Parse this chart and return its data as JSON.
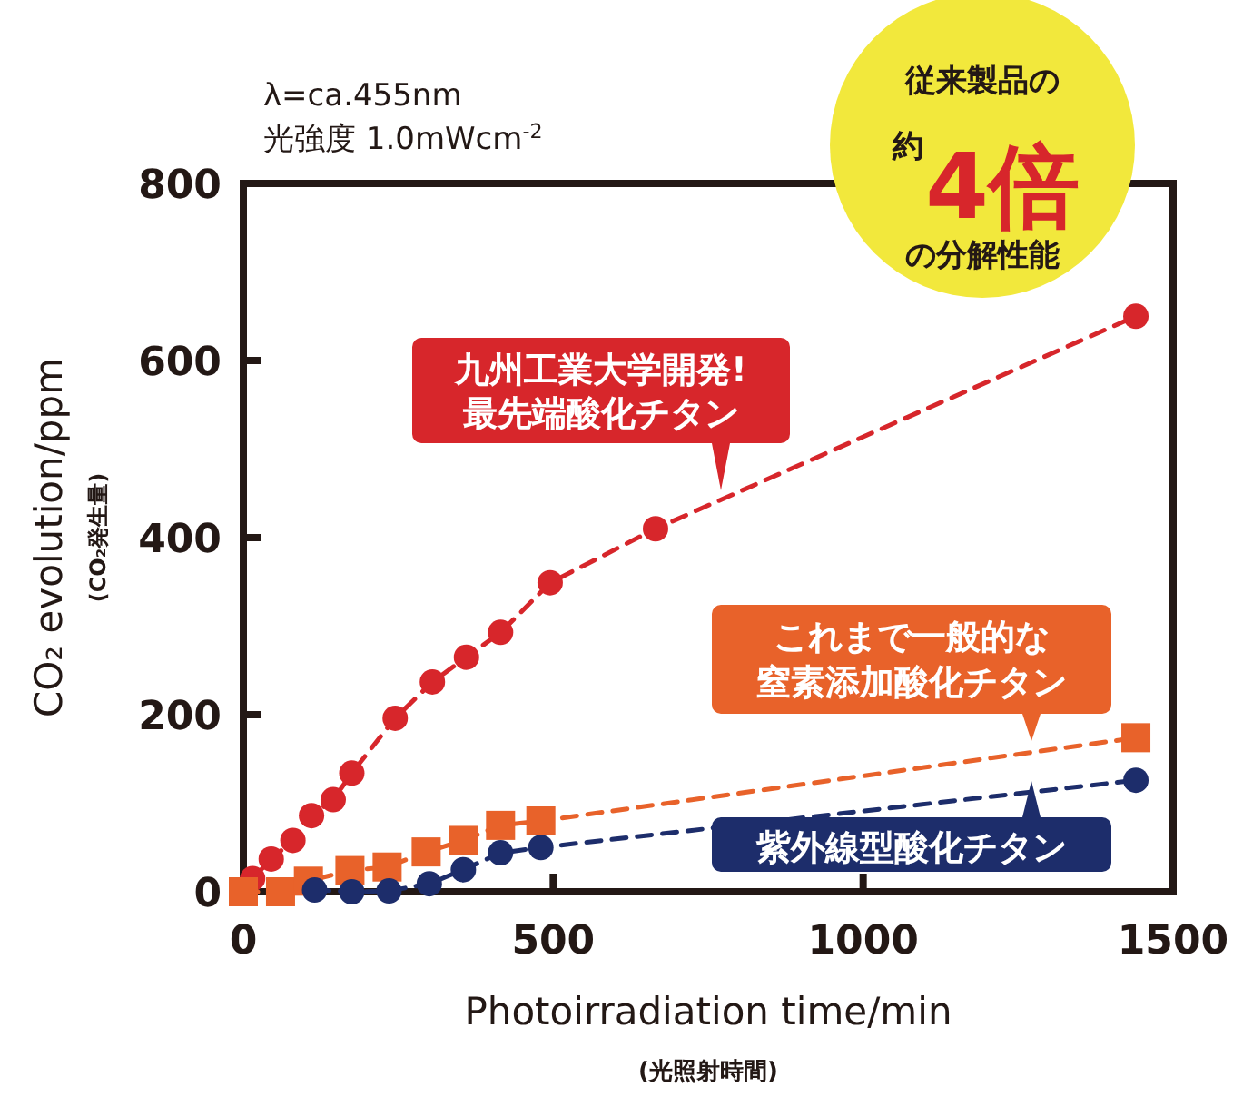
{
  "chart_data": {
    "type": "line",
    "xlabel": "Photoirradiation time/min\n(光照射時間)",
    "ylabel": "CO₂ evolution/ppm\n(CO₂発生量)",
    "xlim": [
      0,
      1500
    ],
    "ylim": [
      0,
      800
    ],
    "xticks": [
      0,
      500,
      1000,
      1500
    ],
    "yticks": [
      0,
      200,
      400,
      600,
      800
    ],
    "grid": false,
    "line_style": "dashed",
    "annotations": [
      "λ=ca.455nm",
      "光強度 1.0mWcm$^{-2}$",
      "従来製品の",
      "約",
      "4倍",
      "の分解性能"
    ],
    "series": [
      {
        "name": "九州工業大学開発!最先端酸化チタン",
        "color": "#d7262b",
        "marker": "circle",
        "x": [
          15,
          45,
          80,
          110,
          145,
          175,
          245,
          305,
          360,
          415,
          495,
          665,
          1440
        ],
        "values": [
          15,
          37,
          58,
          86,
          104,
          134,
          196,
          237,
          265,
          293,
          349,
          410,
          650
        ]
      },
      {
        "name": "これまで一般的な窒素添加酸化チタン",
        "color": "#e8622a",
        "marker": "square",
        "x": [
          0,
          60,
          105,
          172,
          232,
          295,
          355,
          415,
          480,
          1440
        ],
        "values": [
          0,
          0,
          12,
          24,
          28,
          45,
          58,
          75,
          80,
          174
        ]
      },
      {
        "name": "紫外線型酸化チタン",
        "color": "#1d2d6b",
        "marker": "circle",
        "x": [
          115,
          175,
          235,
          300,
          355,
          415,
          480,
          1440
        ],
        "values": [
          2,
          0,
          1,
          9,
          25,
          44,
          50,
          126
        ]
      }
    ]
  }
}
